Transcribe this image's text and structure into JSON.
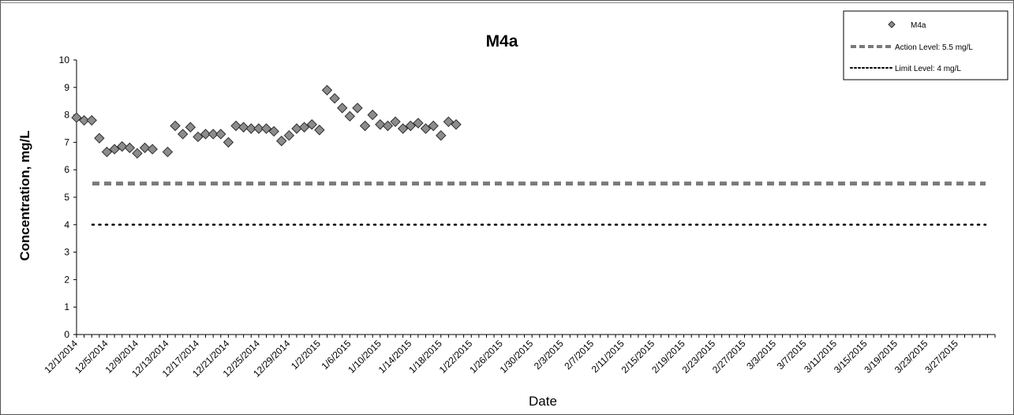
{
  "chart_data": {
    "type": "scatter",
    "title": "M4a",
    "xlabel": "Date",
    "ylabel": "Concentration, mg/L",
    "ylim": [
      0,
      10
    ],
    "yticks": [
      0,
      1,
      2,
      3,
      4,
      5,
      6,
      7,
      8,
      9,
      10
    ],
    "xlim": [
      "12/1/2014",
      "4/1/2015"
    ],
    "xtick_labels": [
      "12/1/2014",
      "12/5/2014",
      "12/9/2014",
      "12/13/2014",
      "12/17/2014",
      "12/21/2014",
      "12/25/2014",
      "12/29/2014",
      "1/2/2015",
      "1/6/2015",
      "1/10/2015",
      "1/14/2015",
      "1/18/2015",
      "1/22/2015",
      "1/26/2015",
      "1/30/2015",
      "2/3/2015",
      "2/7/2015",
      "2/11/2015",
      "2/15/2015",
      "2/19/2015",
      "2/23/2015",
      "2/27/2015",
      "3/3/2015",
      "3/7/2015",
      "3/11/2015",
      "3/15/2015",
      "3/19/2015",
      "3/23/2015",
      "3/27/2015"
    ],
    "grid": false,
    "legend_position": "top-right",
    "series": [
      {
        "name": "M4a",
        "marker": "diamond",
        "color": "#7a7a7a",
        "points": [
          [
            "12/1/2014",
            7.9
          ],
          [
            "12/2/2014",
            7.8
          ],
          [
            "12/3/2014",
            7.8
          ],
          [
            "12/4/2014",
            7.15
          ],
          [
            "12/5/2014",
            6.65
          ],
          [
            "12/6/2014",
            6.75
          ],
          [
            "12/7/2014",
            6.85
          ],
          [
            "12/8/2014",
            6.8
          ],
          [
            "12/9/2014",
            6.6
          ],
          [
            "12/10/2014",
            6.8
          ],
          [
            "12/11/2014",
            6.75
          ],
          [
            "12/13/2014",
            6.65
          ],
          [
            "12/14/2014",
            7.6
          ],
          [
            "12/15/2014",
            7.3
          ],
          [
            "12/16/2014",
            7.55
          ],
          [
            "12/17/2014",
            7.2
          ],
          [
            "12/18/2014",
            7.3
          ],
          [
            "12/19/2014",
            7.3
          ],
          [
            "12/20/2014",
            7.3
          ],
          [
            "12/21/2014",
            7.0
          ],
          [
            "12/22/2014",
            7.6
          ],
          [
            "12/23/2014",
            7.55
          ],
          [
            "12/24/2014",
            7.5
          ],
          [
            "12/25/2014",
            7.5
          ],
          [
            "12/26/2014",
            7.5
          ],
          [
            "12/27/2014",
            7.4
          ],
          [
            "12/28/2014",
            7.05
          ],
          [
            "12/29/2014",
            7.25
          ],
          [
            "12/30/2014",
            7.5
          ],
          [
            "12/31/2014",
            7.55
          ],
          [
            "1/1/2015",
            7.65
          ],
          [
            "1/2/2015",
            7.45
          ],
          [
            "1/3/2015",
            8.9
          ],
          [
            "1/4/2015",
            8.6
          ],
          [
            "1/5/2015",
            8.25
          ],
          [
            "1/6/2015",
            7.95
          ],
          [
            "1/7/2015",
            8.25
          ],
          [
            "1/8/2015",
            7.6
          ],
          [
            "1/9/2015",
            8.0
          ],
          [
            "1/10/2015",
            7.65
          ],
          [
            "1/11/2015",
            7.6
          ],
          [
            "1/12/2015",
            7.75
          ],
          [
            "1/13/2015",
            7.5
          ],
          [
            "1/14/2015",
            7.6
          ],
          [
            "1/15/2015",
            7.7
          ],
          [
            "1/16/2015",
            7.5
          ],
          [
            "1/17/2015",
            7.6
          ],
          [
            "1/18/2015",
            7.25
          ],
          [
            "1/19/2015",
            7.75
          ],
          [
            "1/20/2015",
            7.65
          ]
        ]
      },
      {
        "name": "Action Level: 5.5 mg/L",
        "line_style": "dashed",
        "color": "#7a7a7a",
        "x": [
          "12/1/2014",
          "4/1/2015"
        ],
        "values": [
          5.5,
          5.5
        ]
      },
      {
        "name": "Limit Level: 4 mg/L",
        "line_style": "dotted",
        "color": "#000000",
        "x": [
          "12/1/2014",
          "4/1/2015"
        ],
        "values": [
          4,
          4
        ]
      }
    ]
  }
}
